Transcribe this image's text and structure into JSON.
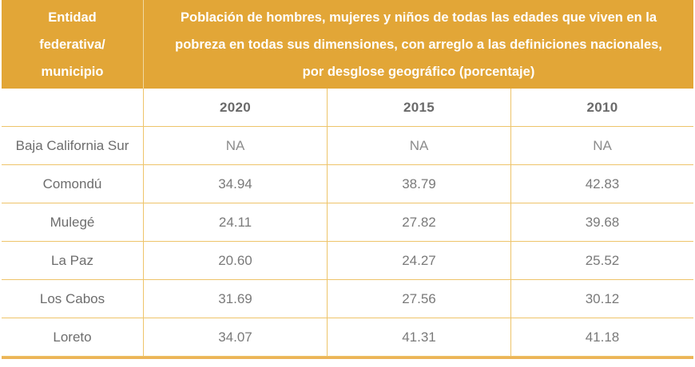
{
  "table": {
    "header": {
      "entity_label": "Entidad federativa/ municipio",
      "indicator_label": "Población de hombres, mujeres y niños de todas las edades que viven en la pobreza en todas sus dimensiones, con arreglo a las definiciones nacionales, por desglose geográfico (porcentaje)"
    },
    "year_columns": [
      "2020",
      "2015",
      "2010"
    ],
    "rows": [
      {
        "name": "Baja California Sur",
        "values": [
          "NA",
          "NA",
          "NA"
        ]
      },
      {
        "name": "Comondú",
        "values": [
          "34.94",
          "38.79",
          "42.83"
        ]
      },
      {
        "name": "Mulegé",
        "values": [
          "24.11",
          "27.82",
          "39.68"
        ]
      },
      {
        "name": "La Paz",
        "values": [
          "20.60",
          "24.27",
          "25.52"
        ]
      },
      {
        "name": "Los Cabos",
        "values": [
          "31.69",
          "27.56",
          "30.12"
        ]
      },
      {
        "name": "Loreto",
        "values": [
          "34.07",
          "41.31",
          "41.18"
        ]
      }
    ],
    "colors": {
      "header_background": "#E2A637",
      "header_text": "#FFFFFF",
      "grid_border": "#EEC46A",
      "header_divider": "#F0D9A2",
      "bottom_bar": "#ECB457",
      "body_text": "#6E6E6E"
    }
  },
  "chart_data": {
    "type": "table",
    "title": "Población de hombres, mujeres y niños de todas las edades que viven en la pobreza en todas sus dimensiones, con arreglo a las definiciones nacionales, por desglose geográfico (porcentaje)",
    "categories": [
      "2020",
      "2015",
      "2010"
    ],
    "series": [
      {
        "name": "Baja California Sur",
        "values": [
          null,
          null,
          null
        ]
      },
      {
        "name": "Comondú",
        "values": [
          34.94,
          38.79,
          42.83
        ]
      },
      {
        "name": "Mulegé",
        "values": [
          24.11,
          27.82,
          39.68
        ]
      },
      {
        "name": "La Paz",
        "values": [
          20.6,
          24.27,
          25.52
        ]
      },
      {
        "name": "Los Cabos",
        "values": [
          31.69,
          27.56,
          30.12
        ]
      },
      {
        "name": "Loreto",
        "values": [
          34.07,
          41.31,
          41.18
        ]
      }
    ]
  }
}
